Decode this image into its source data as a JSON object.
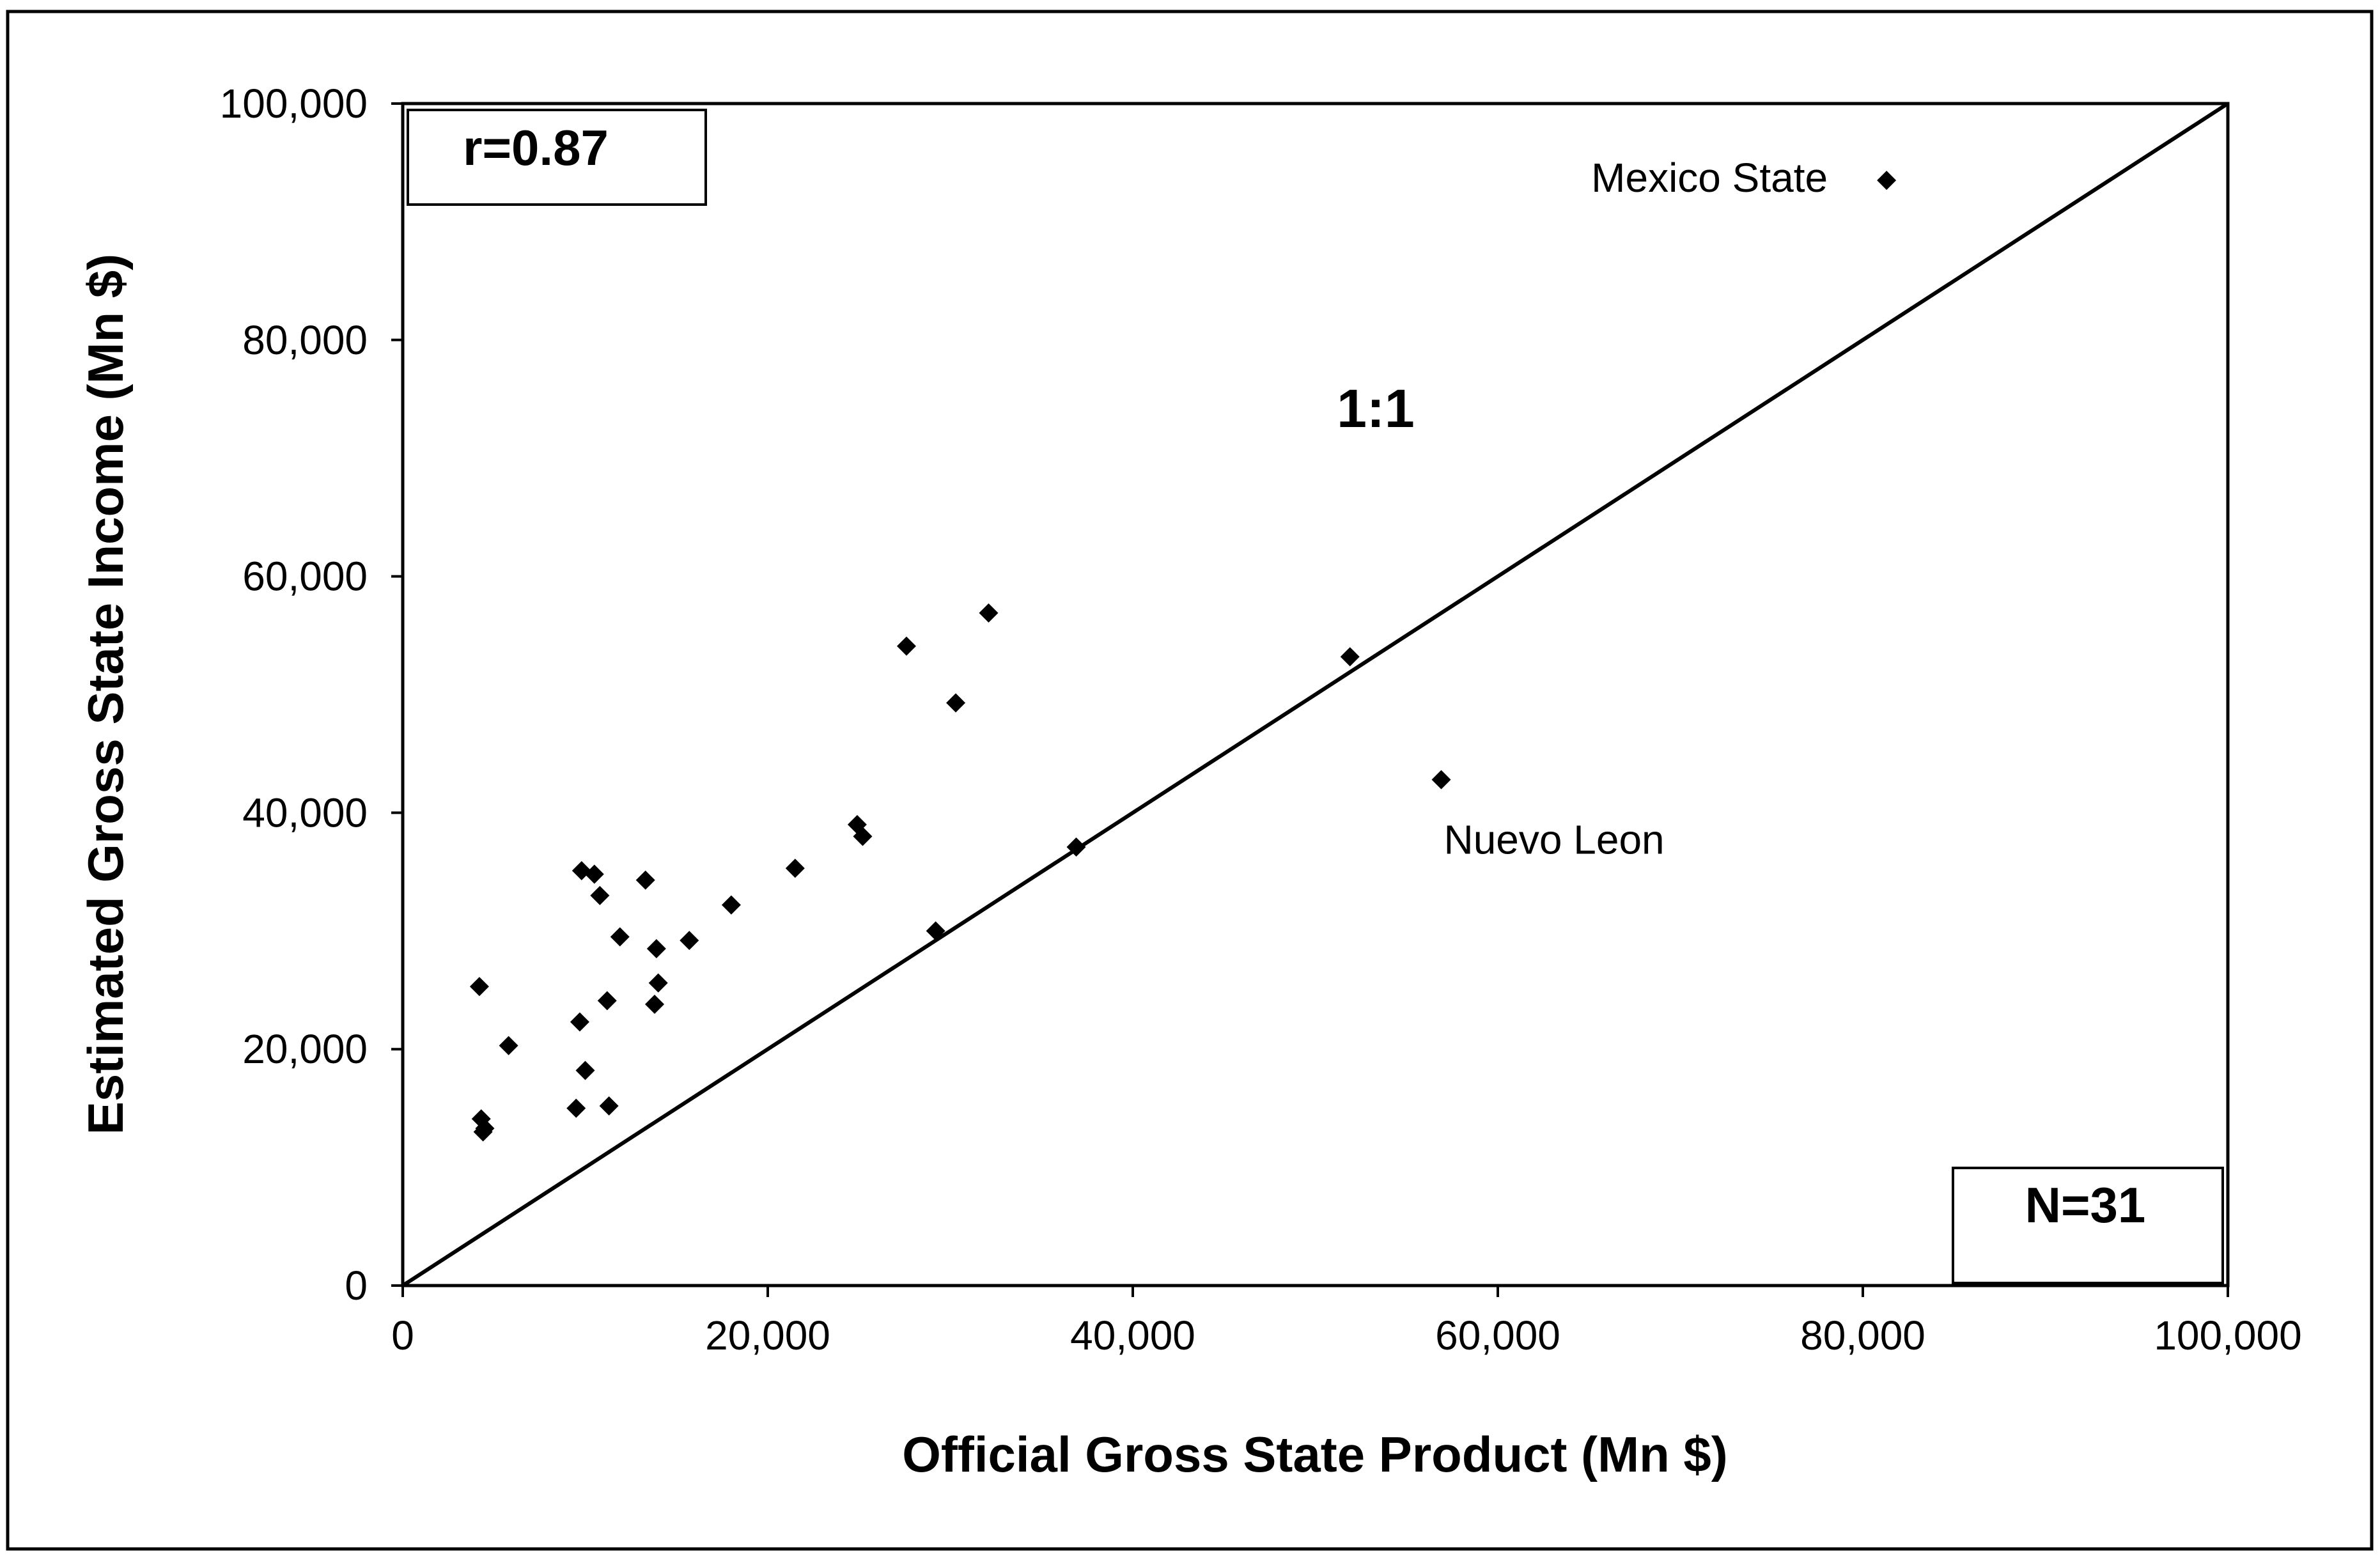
{
  "chart_data": {
    "type": "scatter",
    "xlabel": "Official Gross State Product (Mn $)",
    "ylabel": "Estimated Gross State Income (Mn $)",
    "xlim": [
      0,
      100000
    ],
    "ylim": [
      0,
      100000
    ],
    "x_ticks": [
      "0",
      "20,000",
      "40,000",
      "60,000",
      "80,000",
      "100,000"
    ],
    "y_ticks": [
      "0",
      "20,000",
      "40,000",
      "60,000",
      "80,000",
      "100,000"
    ],
    "grid": false,
    "legend": "none",
    "reference_line": {
      "label": "1:1",
      "from": [
        0,
        0
      ],
      "to": [
        100000,
        100000
      ]
    },
    "stats": {
      "r_label": "r=0.87",
      "n_label": "N=31"
    },
    "annotations": [
      {
        "text": "Mexico State",
        "point": [
          81300,
          93500
        ]
      },
      {
        "text": "Nuevo Leon",
        "point": [
          56900,
          42800
        ]
      }
    ],
    "points": [
      [
        4200,
        25300
      ],
      [
        4300,
        14100
      ],
      [
        4400,
        13000
      ],
      [
        4500,
        13300
      ],
      [
        5800,
        20300
      ],
      [
        9500,
        15000
      ],
      [
        9700,
        22300
      ],
      [
        9800,
        35100
      ],
      [
        10000,
        18200
      ],
      [
        10500,
        34800
      ],
      [
        10800,
        33000
      ],
      [
        11200,
        24100
      ],
      [
        11300,
        15200
      ],
      [
        11900,
        29500
      ],
      [
        13300,
        34300
      ],
      [
        13800,
        23800
      ],
      [
        13900,
        28500
      ],
      [
        14000,
        25600
      ],
      [
        15700,
        29200
      ],
      [
        18000,
        32200
      ],
      [
        21500,
        35300
      ],
      [
        24900,
        39000
      ],
      [
        25200,
        38000
      ],
      [
        27600,
        54100
      ],
      [
        29200,
        30000
      ],
      [
        30300,
        49300
      ],
      [
        32100,
        56900
      ],
      [
        36900,
        37100
      ],
      [
        51900,
        53200
      ],
      [
        56900,
        42800
      ],
      [
        81300,
        93500
      ]
    ],
    "colors": {
      "marker": "#000000",
      "line": "#000000",
      "frame": "#000000"
    }
  }
}
